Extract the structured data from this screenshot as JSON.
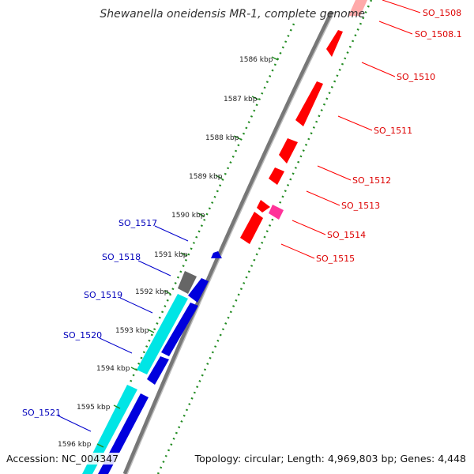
{
  "title": "Shewanella oneidensis MR-1, complete genome",
  "accession": "Accession: NC_004347",
  "topology": "Topology: circular; Length: 4,969,803 bp; Genes: 4,448",
  "colors": {
    "backbone": "#888888",
    "forward_cds": "#ff0000",
    "reverse_cds": "#0000dd",
    "reverse_other": "#00e5e5",
    "pink_feature": "#ff3399",
    "gray_feature": "#666666",
    "gc_dots": "#228b22",
    "forward_label": "#dd0000",
    "reverse_label": "#0000bb"
  },
  "ticks": [
    "1586 kbp",
    "1587 kbp",
    "1588 kbp",
    "1589 kbp",
    "1590 kbp",
    "1591 kbp",
    "1592 kbp",
    "1593 kbp",
    "1594 kbp",
    "1595 kbp",
    "1596 kbp"
  ],
  "forward_labels": [
    "SO_1508",
    "SO_1508.1",
    "SO_1510",
    "SO_1511",
    "SO_1512",
    "SO_1513",
    "SO_1514",
    "SO_1515"
  ],
  "reverse_labels": [
    "SO_1517",
    "SO_1518",
    "SO_1519",
    "SO_1520",
    "SO_1521"
  ]
}
